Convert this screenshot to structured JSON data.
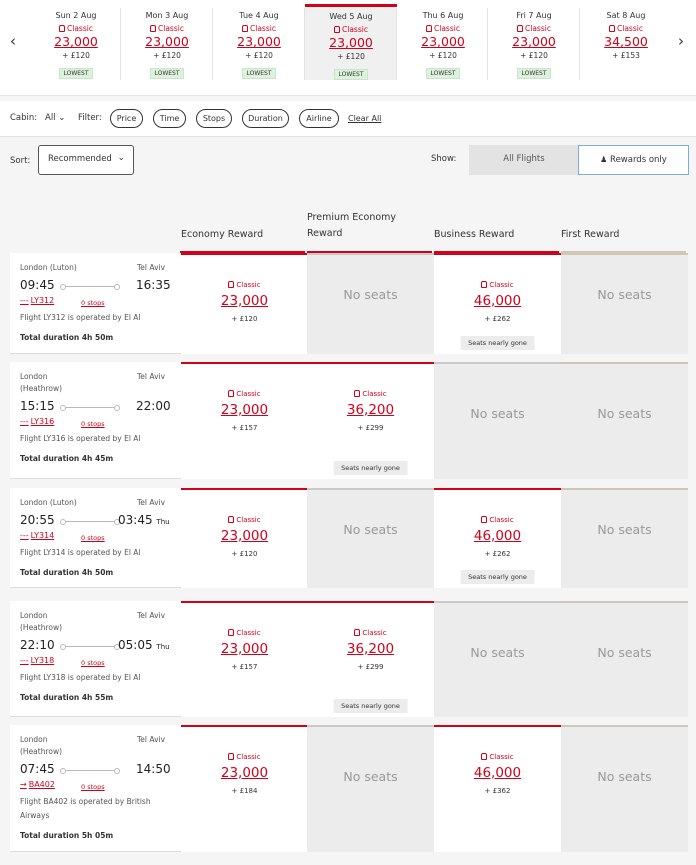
{
  "date_strip": {
    "days": [
      {
        "label": "Sun 2 Aug",
        "class": "Classic",
        "points": "23,000",
        "fee": "+ £120",
        "badge": "LOWEST"
      },
      {
        "label": "Mon 3 Aug",
        "class": "Classic",
        "points": "23,000",
        "fee": "+ £120",
        "badge": "LOWEST"
      },
      {
        "label": "Tue 4 Aug",
        "class": "Classic",
        "points": "23,000",
        "fee": "+ £120",
        "badge": "LOWEST"
      },
      {
        "label": "Wed 5 Aug",
        "class": "Classic",
        "points": "23,000",
        "fee": "+ £120",
        "badge": "LOWEST"
      },
      {
        "label": "Thu 6 Aug",
        "class": "Classic",
        "points": "23,000",
        "fee": "+ £120",
        "badge": "LOWEST"
      },
      {
        "label": "Fri 7 Aug",
        "class": "Classic",
        "points": "23,000",
        "fee": "+ £120",
        "badge": "LOWEST"
      },
      {
        "label": "Sat 8 Aug",
        "class": "Classic",
        "points": "34,500",
        "fee": "+ £153",
        "badge": ""
      }
    ],
    "prev_icon": "‹",
    "next_icon": "›"
  },
  "filters": {
    "cabin_label": "Cabin:",
    "cabin_value": "All",
    "filter_label": "Filter:",
    "pills": [
      "Price",
      "Time",
      "Stops",
      "Duration",
      "Airline"
    ],
    "clear_all": "Clear All"
  },
  "sort": {
    "label": "Sort:",
    "value": "Recommended"
  },
  "show": {
    "label": "Show:",
    "all_flights": "All Flights",
    "rewards_only": "Rewards only"
  },
  "columns": [
    "Economy Reward",
    "Premium Economy Reward",
    "Business Reward",
    "First Reward"
  ],
  "no_seats": "No seats",
  "flights": [
    {
      "origin": "London (Luton)",
      "destination": "Tel Aviv",
      "depart": "09:45",
      "arrive": "16:35",
      "arrive_day": "",
      "flight_prefix": "---",
      "flight_no": "LY312",
      "stops": "0 stops",
      "operator": "Flight LY312 is operated by El Al",
      "duration": "Total duration 4h 50m",
      "fares": [
        {
          "available": true,
          "class": "Classic",
          "points": "23,000",
          "fee": "+ £120",
          "note": ""
        },
        {
          "available": false
        },
        {
          "available": true,
          "class": "Classic",
          "points": "46,000",
          "fee": "+ £262",
          "note": "Seats nearly gone"
        },
        {
          "available": false
        }
      ]
    },
    {
      "origin": "London\n(Heathrow)",
      "destination": "Tel Aviv",
      "depart": "15:15",
      "arrive": "22:00",
      "arrive_day": "",
      "flight_prefix": "---",
      "flight_no": "LY316",
      "stops": "0 stops",
      "operator": "Flight LY316 is operated by El Al",
      "duration": "Total duration 4h 45m",
      "fares": [
        {
          "available": true,
          "class": "Classic",
          "points": "23,000",
          "fee": "+ £157",
          "note": ""
        },
        {
          "available": true,
          "class": "Classic",
          "points": "36,200",
          "fee": "+ £299",
          "note": "Seats nearly gone"
        },
        {
          "available": false
        },
        {
          "available": false
        }
      ]
    },
    {
      "origin": "London (Luton)",
      "destination": "Tel Aviv",
      "depart": "20:55",
      "arrive": "03:45",
      "arrive_day": "Thu",
      "flight_prefix": "---",
      "flight_no": "LY314",
      "stops": "0 stops",
      "operator": "Flight LY314 is operated by El Al",
      "duration": "Total duration 4h 50m",
      "fares": [
        {
          "available": true,
          "class": "Classic",
          "points": "23,000",
          "fee": "+ £120",
          "note": ""
        },
        {
          "available": false
        },
        {
          "available": true,
          "class": "Classic",
          "points": "46,000",
          "fee": "+ £262",
          "note": "Seats nearly gone"
        },
        {
          "available": false
        }
      ]
    },
    {
      "origin": "London\n(Heathrow)",
      "destination": "Tel Aviv",
      "depart": "22:10",
      "arrive": "05:05",
      "arrive_day": "Thu",
      "flight_prefix": "---",
      "flight_no": "LY318",
      "stops": "0 stops",
      "operator": "Flight LY318 is operated by El Al",
      "duration": "Total duration 4h 55m",
      "fares": [
        {
          "available": true,
          "class": "Classic",
          "points": "23,000",
          "fee": "+ £157",
          "note": ""
        },
        {
          "available": true,
          "class": "Classic",
          "points": "36,200",
          "fee": "+ £299",
          "note": "Seats nearly gone"
        },
        {
          "available": false
        },
        {
          "available": false
        }
      ]
    },
    {
      "origin": "London\n(Heathrow)",
      "destination": "Tel Aviv",
      "depart": "07:45",
      "arrive": "14:50",
      "arrive_day": "",
      "flight_prefix": "→",
      "flight_no": "BA402",
      "stops": "0 stops",
      "operator": "Flight BA402 is operated by British\nAirways",
      "duration": "Total duration 5h 05m",
      "fares": [
        {
          "available": true,
          "class": "Classic",
          "points": "23,000",
          "fee": "+ £184",
          "note": ""
        },
        {
          "available": false
        },
        {
          "available": true,
          "class": "Classic",
          "points": "46,000",
          "fee": "+ £362",
          "note": ""
        },
        {
          "available": false
        }
      ]
    }
  ],
  "colors": {
    "accent": "#d0021b",
    "lowest_badge": "#dcf2dc",
    "first_line": "#cfc6b4"
  }
}
